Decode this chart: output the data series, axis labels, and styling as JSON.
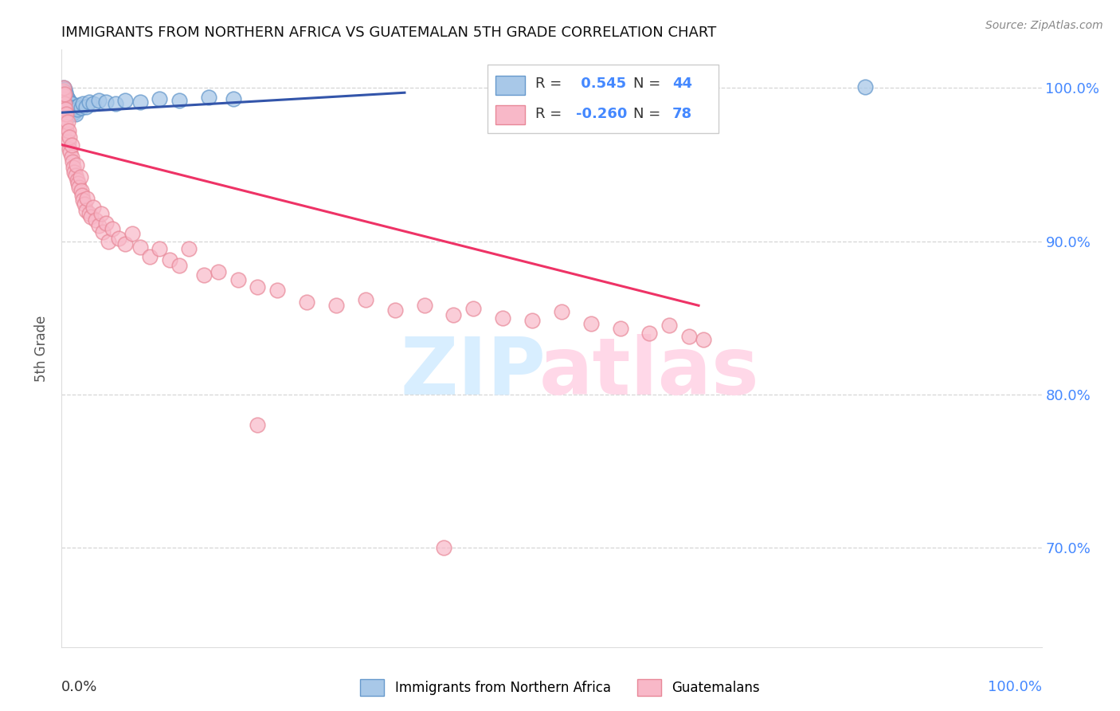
{
  "title": "IMMIGRANTS FROM NORTHERN AFRICA VS GUATEMALAN 5TH GRADE CORRELATION CHART",
  "source": "Source: ZipAtlas.com",
  "ylabel": "5th Grade",
  "xlim": [
    0.0,
    1.0
  ],
  "ylim": [
    0.635,
    1.025
  ],
  "yticks": [
    0.7,
    0.8,
    0.9,
    1.0
  ],
  "ytick_labels_right": [
    "70.0%",
    "80.0%",
    "90.0%",
    "100.0%"
  ],
  "legend_r_blue": " 0.545",
  "legend_n_blue": "44",
  "legend_r_pink": "-0.260",
  "legend_n_pink": "78",
  "blue_face_color": "#A8C8E8",
  "blue_edge_color": "#6699CC",
  "pink_face_color": "#F8B8C8",
  "pink_edge_color": "#E88898",
  "blue_line_color": "#3355AA",
  "pink_line_color": "#EE3366",
  "grid_color": "#CCCCCC",
  "title_color": "#111111",
  "source_color": "#888888",
  "raxis_color": "#4488FF",
  "watermark_zip_color": "#D8EEFF",
  "watermark_atlas_color": "#FFD8E8",
  "blue_line_x0": 0.0,
  "blue_line_x1": 0.35,
  "blue_line_y0": 0.984,
  "blue_line_y1": 0.997,
  "pink_line_x0": 0.0,
  "pink_line_x1": 0.65,
  "pink_line_y0": 0.963,
  "pink_line_y1": 0.858
}
